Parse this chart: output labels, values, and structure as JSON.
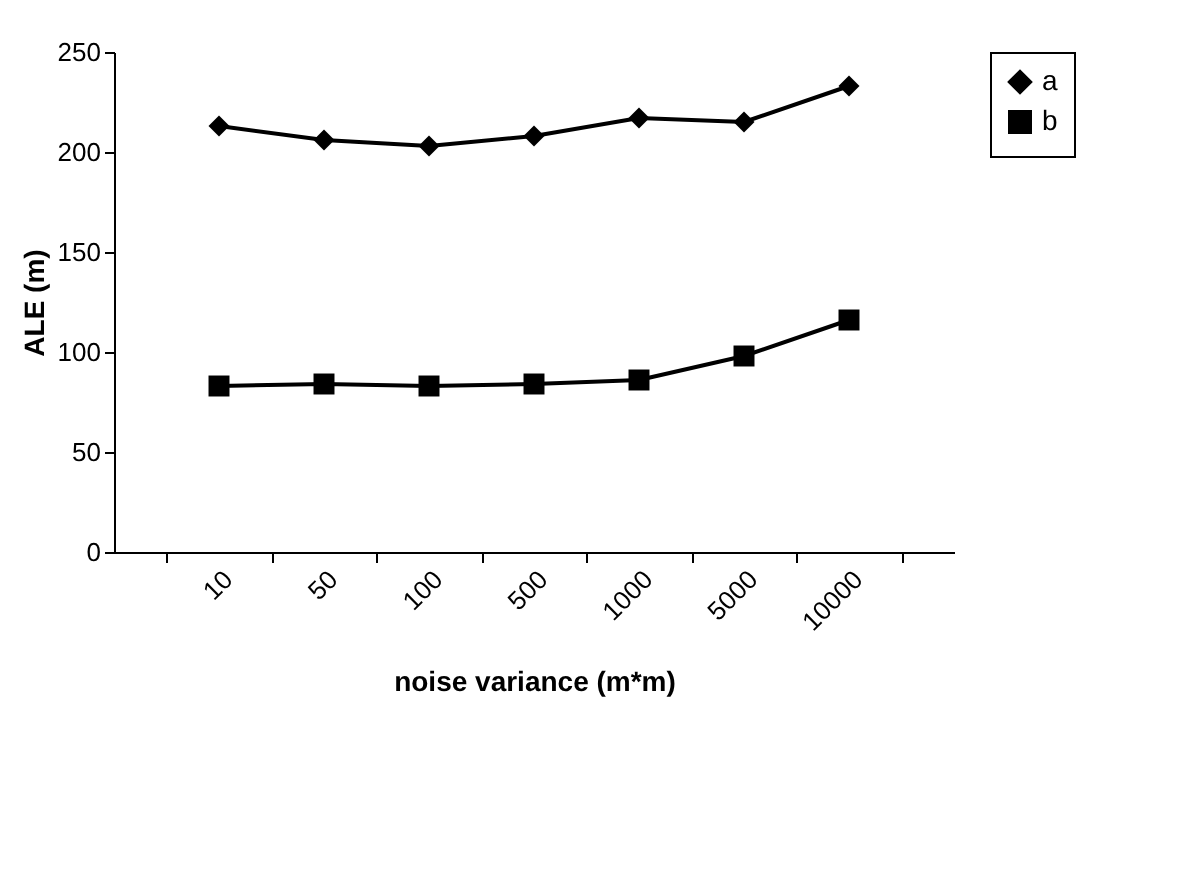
{
  "chart_data": {
    "type": "line",
    "xlabel": "noise variance (m*m)",
    "ylabel": "ALE (m)",
    "categories": [
      "10",
      "50",
      "100",
      "500",
      "1000",
      "5000",
      "10000"
    ],
    "series": [
      {
        "name": "a",
        "color": "#000000",
        "marker": "diamond",
        "values": [
          213,
          206,
          203,
          208,
          217,
          215,
          233
        ]
      },
      {
        "name": "b",
        "color": "#000000",
        "marker": "square",
        "values": [
          83,
          84,
          83,
          84,
          86,
          98,
          116
        ]
      }
    ],
    "ylim": [
      0,
      250
    ],
    "yticks": [
      0,
      50,
      100,
      150,
      200,
      250
    ],
    "legend": "right",
    "grid": false
  }
}
